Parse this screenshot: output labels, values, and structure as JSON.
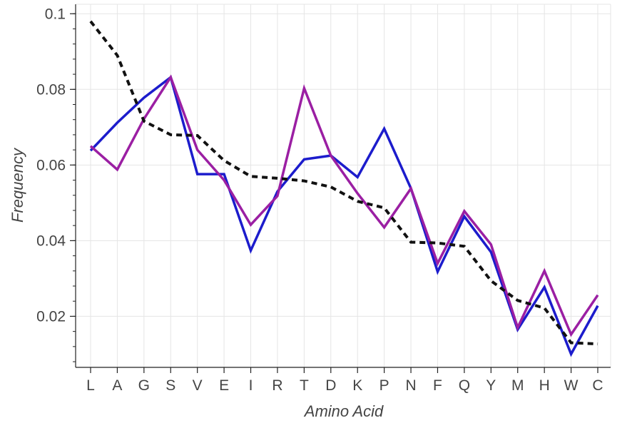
{
  "chart_data": {
    "type": "line",
    "xlabel": "Amino Acid",
    "ylabel": "Frequency",
    "categories": [
      "L",
      "A",
      "G",
      "S",
      "V",
      "E",
      "I",
      "R",
      "T",
      "D",
      "K",
      "P",
      "N",
      "F",
      "Q",
      "Y",
      "M",
      "H",
      "W",
      "C"
    ],
    "ylim": [
      0.0065,
      0.1025
    ],
    "yticks": [
      0.02,
      0.04,
      0.06,
      0.08,
      0.1
    ],
    "ytick_labels": [
      "0.02",
      "0.04",
      "0.06",
      "0.08",
      "0.1"
    ],
    "grid": true,
    "series": [
      {
        "color": "#1c1ccc",
        "style": "solid",
        "values": [
          0.0638,
          0.0712,
          0.0778,
          0.0832,
          0.0576,
          0.0576,
          0.0374,
          0.053,
          0.0615,
          0.0625,
          0.0568,
          0.0696,
          0.0538,
          0.0318,
          0.0464,
          0.037,
          0.0165,
          0.0277,
          0.01,
          0.0228
        ]
      },
      {
        "color": "#9b1fa3",
        "style": "solid",
        "values": [
          0.065,
          0.0588,
          0.0722,
          0.0832,
          0.064,
          0.056,
          0.0442,
          0.0518,
          0.0803,
          0.0625,
          0.0525,
          0.0435,
          0.0538,
          0.034,
          0.0478,
          0.039,
          0.017,
          0.032,
          0.0152,
          0.0256
        ]
      },
      {
        "color": "#111111",
        "style": "dashed",
        "values": [
          0.098,
          0.089,
          0.0716,
          0.068,
          0.0678,
          0.0612,
          0.057,
          0.0565,
          0.0558,
          0.0542,
          0.0504,
          0.0487,
          0.0396,
          0.0394,
          0.0385,
          0.0294,
          0.0242,
          0.0222,
          0.013,
          0.0127
        ]
      }
    ]
  }
}
